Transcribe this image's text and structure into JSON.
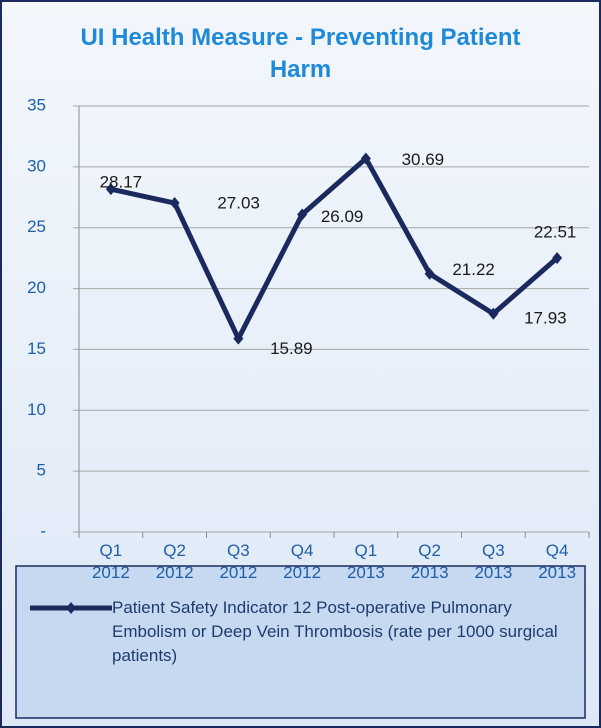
{
  "chart_data": {
    "type": "line",
    "title": "UI Health Measure - Preventing Patient Harm",
    "categories": [
      "Q1 2012",
      "Q2 2012",
      "Q3 2012",
      "Q4 2012",
      "Q1 2013",
      "Q2 2013",
      "Q3 2013",
      "Q4 2013"
    ],
    "series": [
      {
        "name": "Patient Safety Indicator 12 Post-operative Pulmonary Embolism or Deep Vein Thrombosis (rate per 1000 surgical patients)",
        "color": "#1a2a5e",
        "values": [
          28.17,
          27.03,
          15.89,
          26.09,
          30.69,
          21.22,
          17.93,
          22.51
        ]
      }
    ],
    "ylim": [
      0,
      35
    ],
    "yticks": [
      {
        "value": 0,
        "label": "-"
      },
      5,
      10,
      15,
      20,
      25,
      30,
      35
    ],
    "grid": true,
    "legend": "bottom"
  }
}
